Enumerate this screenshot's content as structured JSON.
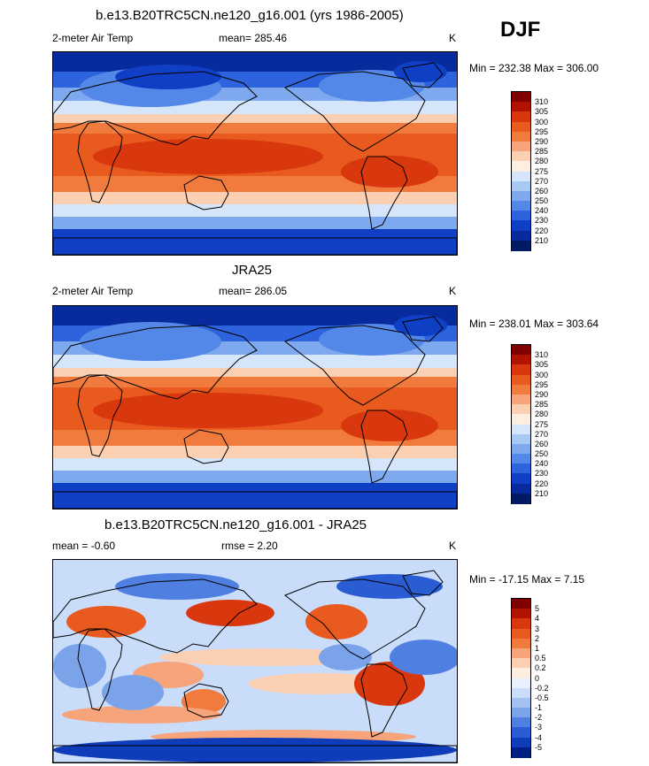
{
  "season": "DJF",
  "panels": [
    {
      "title": "b.e13.B20TRC5CN.ne120_g16.001 (yrs 1986-2005)",
      "left_label": "2-meter Air Temp",
      "center_label": "mean= 285.46",
      "units": "K",
      "minmax": "Min = 232.38 Max = 306.00",
      "colorbar_labels": [
        "310",
        "305",
        "300",
        "295",
        "290",
        "285",
        "280",
        "275",
        "270",
        "260",
        "250",
        "240",
        "230",
        "220",
        "210"
      ]
    },
    {
      "title": "JRA25",
      "left_label": "2-meter Air Temp",
      "center_label": "mean= 286.05",
      "units": "K",
      "minmax": "Min = 238.01 Max = 303.64",
      "colorbar_labels": [
        "310",
        "305",
        "300",
        "295",
        "290",
        "285",
        "280",
        "275",
        "270",
        "260",
        "250",
        "240",
        "230",
        "220",
        "210"
      ]
    },
    {
      "title": "b.e13.B20TRC5CN.ne120_g16.001 - JRA25",
      "left_label": "mean =  -0.60",
      "center_label": "rmse =   2.20",
      "units": "K",
      "minmax": "Min = -17.15 Max =   7.15",
      "colorbar_labels": [
        "5",
        "4",
        "3",
        "2",
        "1",
        "0.5",
        "0.2",
        "0",
        "-0.2",
        "-0.5",
        "-1",
        "-2",
        "-3",
        "-4",
        "-5"
      ]
    }
  ],
  "colors": {
    "temp_scale": [
      "#7f0000",
      "#b21300",
      "#d9370d",
      "#e85a1d",
      "#f07b3c",
      "#f7a47b",
      "#fbcfb2",
      "#fdeee2",
      "#d5e6fb",
      "#a9c9f5",
      "#7ea9ee",
      "#5488e8",
      "#2d63dc",
      "#0f3fc4",
      "#072a9c",
      "#001a66"
    ],
    "diff_scale": [
      "#7f0000",
      "#b21300",
      "#d9370d",
      "#e85a1d",
      "#f07b3c",
      "#f7a47b",
      "#fbcfb2",
      "#fdeee2",
      "#e8f0fd",
      "#c9dcf9",
      "#a3c2f2",
      "#7aa3ea",
      "#4f7fe0",
      "#2a5dd3",
      "#0f3cb8",
      "#001f85"
    ],
    "land_outline": "#000000"
  },
  "chart_data": [
    {
      "type": "heatmap",
      "title": "b.e13.B20TRC5CN.ne120_g16.001 (yrs 1986-2005)",
      "variable": "2-meter Air Temp",
      "units": "K",
      "mean": 285.46,
      "min": 232.38,
      "max": 306.0,
      "levels": [
        210,
        220,
        230,
        240,
        250,
        260,
        270,
        275,
        280,
        285,
        290,
        295,
        300,
        305,
        310
      ]
    },
    {
      "type": "heatmap",
      "title": "JRA25",
      "variable": "2-meter Air Temp",
      "units": "K",
      "mean": 286.05,
      "min": 238.01,
      "max": 303.64,
      "levels": [
        210,
        220,
        230,
        240,
        250,
        260,
        270,
        275,
        280,
        285,
        290,
        295,
        300,
        305,
        310
      ]
    },
    {
      "type": "heatmap",
      "title": "b.e13.B20TRC5CN.ne120_g16.001 - JRA25",
      "units": "K",
      "mean": -0.6,
      "rmse": 2.2,
      "min": -17.15,
      "max": 7.15,
      "levels": [
        -5,
        -4,
        -3,
        -2,
        -1,
        -0.5,
        -0.2,
        0,
        0.2,
        0.5,
        1,
        2,
        3,
        4,
        5
      ]
    }
  ]
}
